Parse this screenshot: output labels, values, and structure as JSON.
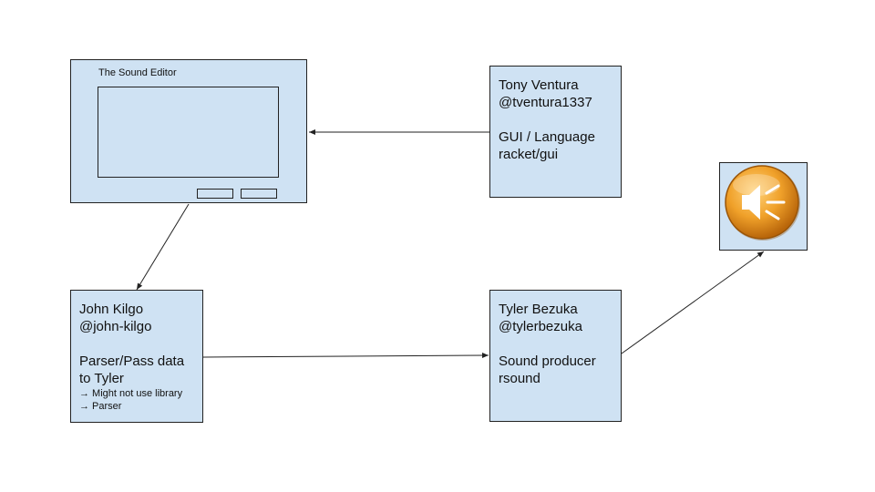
{
  "editor": {
    "title": "The Sound Editor"
  },
  "tony": {
    "lines": [
      "Tony Ventura",
      "@tventura1337",
      "",
      "GUI / Language",
      "racket/gui"
    ]
  },
  "john": {
    "lines": [
      "John Kilgo",
      "@john-kilgo",
      "",
      "Parser/Pass data",
      "to Tyler"
    ],
    "notes": [
      "→ Might not use library",
      "→ Parser"
    ]
  },
  "tyler": {
    "lines": [
      "Tyler Bezuka",
      "@tylerbezuka",
      "",
      "Sound producer",
      "rsound"
    ]
  },
  "speaker": {
    "icon": "speaker-icon",
    "colors": {
      "outer": "#b8650a",
      "inner": "#f0a12a",
      "highlight": "#ffd27a",
      "glyph": "#ffffff"
    }
  },
  "colors": {
    "box_fill": "#cfe2f3",
    "line": "#222222"
  }
}
